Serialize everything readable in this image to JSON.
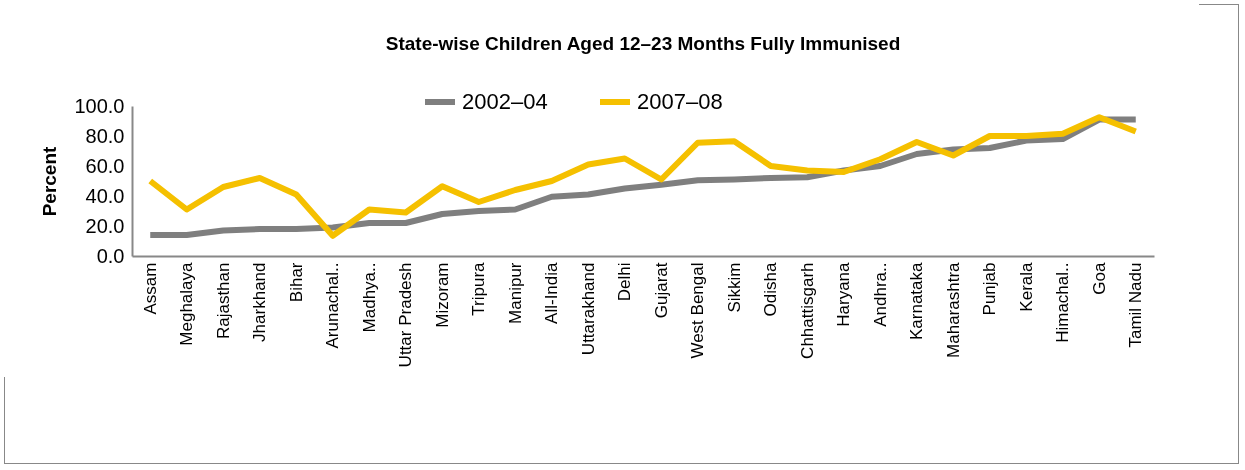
{
  "chart_data": {
    "type": "line",
    "title": "State-wise Children Aged 12–23 Months Fully Immunised",
    "ylabel": "Percent",
    "categories": [
      "Assam",
      "Meghalaya",
      "Rajasthan",
      "Jharkhand",
      "Bihar",
      "Arunachal..",
      "Madhya..",
      "Uttar Pradesh",
      "Mizoram",
      "Tripura",
      "Manipur",
      "All-India",
      "Uttarakhand",
      "Delhi",
      "Gujarat",
      "West Bengal",
      "Sikkim",
      "Odisha",
      "Chhattisgarh",
      "Haryana",
      "Andhra..",
      "Karnataka",
      "Maharashtra",
      "Punjab",
      "Kerala",
      "Himachal..",
      "Goa",
      "Tamil Nadu"
    ],
    "series": [
      {
        "name": "2002–04",
        "color": "#7f7f7f",
        "values": [
          14,
          14,
          17,
          18,
          18,
          19,
          22,
          22,
          28,
          30,
          31,
          39.5,
          41,
          45,
          47.5,
          50.5,
          51,
          52,
          52.5,
          57,
          60,
          68,
          71,
          72,
          77,
          78,
          91,
          91
        ]
      },
      {
        "name": "2007–08",
        "color": "#f5c000",
        "values": [
          50,
          31,
          46,
          52,
          41,
          13.5,
          31,
          29,
          46.5,
          36,
          44,
          50,
          61,
          65,
          51,
          75.5,
          76.5,
          60,
          57,
          56,
          64.5,
          76,
          67,
          80,
          80,
          81.5,
          92.5,
          83
        ]
      }
    ],
    "ylim": [
      0,
      100
    ],
    "yticks": [
      {
        "value": 0,
        "label": "0.0"
      },
      {
        "value": 20,
        "label": "20.0"
      },
      {
        "value": 40,
        "label": "40.0"
      },
      {
        "value": 60,
        "label": "60.0"
      },
      {
        "value": 80,
        "label": "80.0"
      },
      {
        "value": 100,
        "label": "100.0"
      }
    ],
    "grid": false,
    "legend": "top",
    "marker": "none",
    "line_style": "solid"
  }
}
